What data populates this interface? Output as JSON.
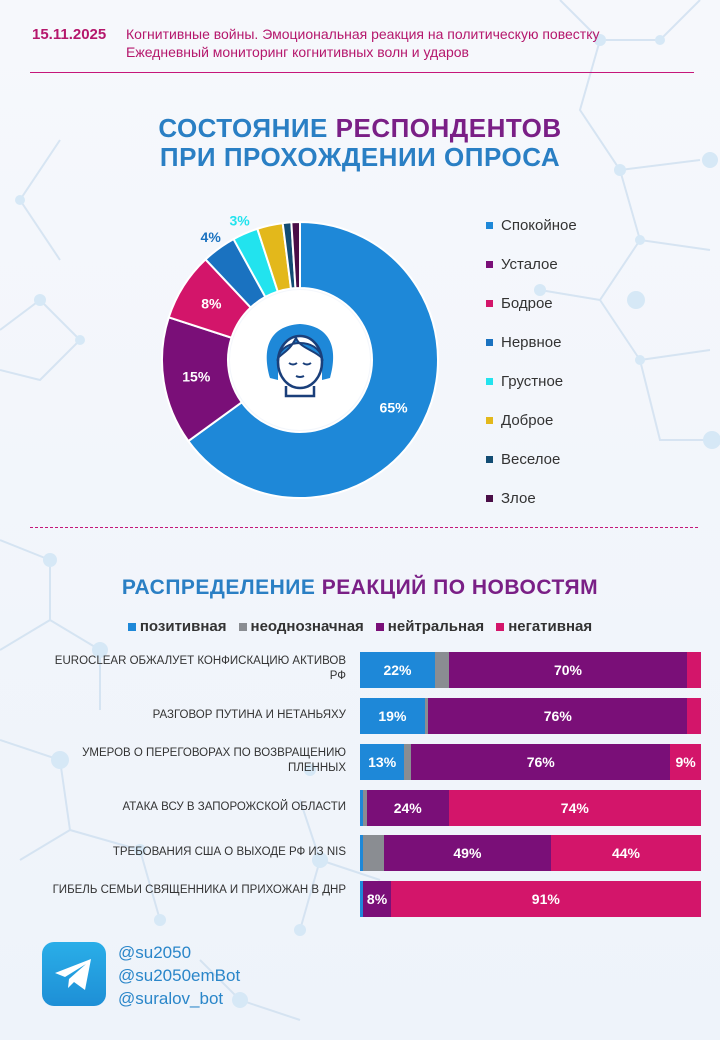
{
  "header": {
    "date": "15.11.2025",
    "subtitle1": "Когнитивные войны. Эмоциональная реакция на политическую повестку",
    "subtitle2": "Ежедневный мониторинг когнитивных волн и ударов"
  },
  "section1": {
    "title_line1_part1": "СОСТОЯНИЕ",
    "title_line1_part2": "РЕСПОНДЕНТОВ",
    "title_line2": "ПРИ ПРОХОЖДЕНИИ ОПРОСА"
  },
  "section2": {
    "title_part1": "РАСПРЕДЕЛЕНИЕ",
    "title_part2": "РЕАКЦИЙ ПО НОВОСТЯМ"
  },
  "icons": {
    "center": "woman-face-icon",
    "telegram": "telegram-icon"
  },
  "chart_data": [
    {
      "type": "pie",
      "title": "СОСТОЯНИЕ РЕСПОНДЕНТОВ ПРИ ПРОХОЖДЕНИИ ОПРОСА",
      "categories": [
        "Спокойное",
        "Усталое",
        "Бодрое",
        "Нервное",
        "Грустное",
        "Доброе",
        "Веселое",
        "Злое"
      ],
      "values": [
        65,
        15,
        8,
        4,
        3,
        3,
        1,
        1
      ],
      "labels": [
        "65%",
        "15%",
        "8%",
        "4%",
        "3%",
        "",
        "",
        ""
      ],
      "colors": [
        "#1e88d8",
        "#7a0f78",
        "#d3156a",
        "#1a72c0",
        "#22e3ee",
        "#e3b81b",
        "#124c73",
        "#4a0e47"
      ],
      "legend": "right",
      "donut": true
    },
    {
      "type": "bar",
      "stacked": true,
      "orientation": "horizontal",
      "title": "РАСПРЕДЕЛЕНИЕ РЕАКЦИЙ ПО НОВОСТЯМ",
      "categories": [
        "EUROCLEAR ОБЖАЛУЕТ КОНФИСКАЦИЮ АКТИВОВ РФ",
        "РАЗГОВОР ПУТИНА И НЕТАНЬЯХУ",
        "УМЕРОВ О ПЕРЕГОВОРАХ ПО ВОЗВРАЩЕНИЮ ПЛЕННЫХ",
        "АТАКА ВСУ В ЗАПОРОЖСКОЙ ОБЛАСТИ",
        "ТРЕБОВАНИЯ США О ВЫХОДЕ РФ ИЗ NIS",
        "ГИБЕЛЬ СЕМЬИ СВЯЩЕННИКА И ПРИХОЖАН В ДНР"
      ],
      "series": [
        {
          "name": "позитивная",
          "color": "#1e88d8",
          "values": [
            22,
            19,
            13,
            1,
            1,
            1
          ],
          "labels": [
            "22%",
            "19%",
            "13%",
            "",
            "",
            ""
          ]
        },
        {
          "name": "неоднозначная",
          "color": "#8a8d92",
          "values": [
            4,
            1,
            2,
            1,
            6,
            0
          ],
          "labels": [
            "",
            "",
            "",
            "",
            "",
            ""
          ]
        },
        {
          "name": "нейтральная",
          "color": "#7a0f78",
          "values": [
            70,
            76,
            76,
            24,
            49,
            8
          ],
          "labels": [
            "70%",
            "76%",
            "76%",
            "24%",
            "49%",
            "8%"
          ]
        },
        {
          "name": "негативная",
          "color": "#d3156a",
          "values": [
            4,
            4,
            9,
            74,
            44,
            91
          ],
          "labels": [
            "",
            "",
            "9%",
            "74%",
            "44%",
            "91%"
          ]
        }
      ],
      "legend": "top"
    }
  ],
  "footer": {
    "handle1": "@su2050",
    "handle2": "@su2050emBot",
    "handle3": "@suralov_bot"
  }
}
